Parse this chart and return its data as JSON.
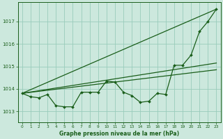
{
  "background_color": "#cce8dd",
  "grid_color": "#99ccbb",
  "line_color": "#1a5e1a",
  "text_color": "#1a5e1a",
  "title": "Graphe pression niveau de la mer (hPa)",
  "xlim": [
    -0.5,
    23.5
  ],
  "ylim": [
    1012.5,
    1017.85
  ],
  "yticks": [
    1013,
    1014,
    1015,
    1016,
    1017
  ],
  "xticks": [
    0,
    1,
    2,
    3,
    4,
    5,
    6,
    7,
    8,
    9,
    10,
    11,
    12,
    13,
    14,
    15,
    16,
    17,
    18,
    19,
    20,
    21,
    22,
    23
  ],
  "line1_straight": {
    "x": [
      0,
      23
    ],
    "y": [
      1013.8,
      1017.55
    ]
  },
  "line2_straight": {
    "x": [
      0,
      23
    ],
    "y": [
      1013.8,
      1015.15
    ]
  },
  "line3_straight": {
    "x": [
      0,
      23
    ],
    "y": [
      1013.8,
      1014.85
    ]
  },
  "line4_markers": {
    "x": [
      0,
      1,
      2,
      3,
      4,
      5,
      6,
      7,
      8,
      9,
      10,
      11,
      12,
      13,
      14,
      15,
      16,
      17,
      18,
      19,
      20,
      21,
      22,
      23
    ],
    "y": [
      1013.8,
      1013.65,
      1013.6,
      1013.75,
      1013.25,
      1013.2,
      1013.2,
      1013.85,
      1013.85,
      1013.85,
      1014.35,
      1014.3,
      1013.85,
      1013.7,
      1013.4,
      1013.45,
      1013.8,
      1013.75,
      1015.05,
      1015.05,
      1015.5,
      1016.55,
      1017.0,
      1017.55
    ]
  }
}
